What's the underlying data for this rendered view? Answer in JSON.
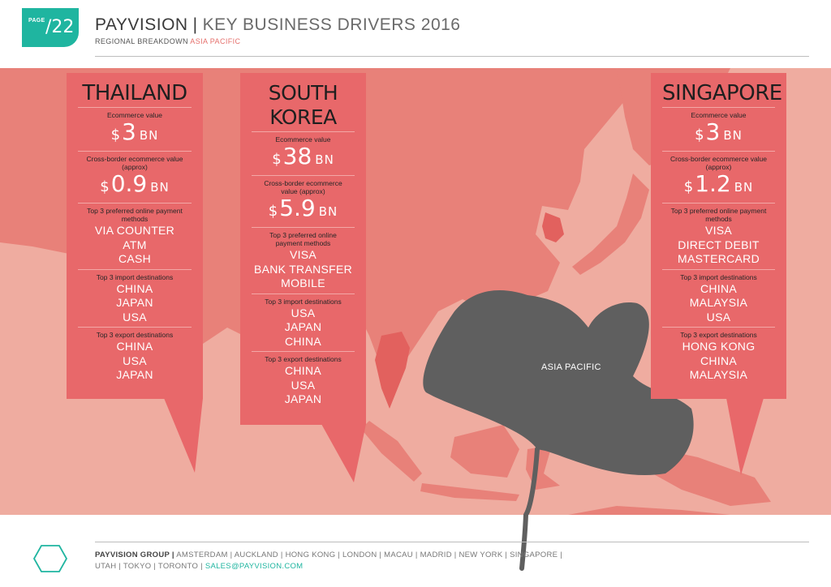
{
  "header": {
    "page_label": "PAGE",
    "page_number": "/22",
    "brand": "PAYVISION",
    "separator": "|",
    "title": "KEY BUSINESS DRIVERS 2016",
    "subtitle_prefix": "REGIONAL BREAKDOWN",
    "subtitle_region": "ASIA PACIFIC"
  },
  "map": {
    "region_label": "ASIA PACIFIC",
    "colors": {
      "sea": "#efaca0",
      "land": "#e88179",
      "highlight": "#e2615e",
      "leaf": "#5f5f5f"
    }
  },
  "labels": {
    "ecommerce_value": "Ecommerce value",
    "cross_border": "Cross-border ecommerce value (approx)",
    "payment_methods": "Top 3 preferred online payment methods",
    "import_destinations": "Top 3 import destinations",
    "export_destinations": "Top 3 export destinations",
    "currency": "$",
    "unit": "BN"
  },
  "countries": [
    {
      "name": "THAILAND",
      "ecommerce_value": "3",
      "cross_border_value": "0.9",
      "payment_methods": [
        "VIA COUNTER",
        "ATM",
        "CASH"
      ],
      "imports": [
        "CHINA",
        "JAPAN",
        "USA"
      ],
      "exports": [
        "CHINA",
        "USA",
        "JAPAN"
      ]
    },
    {
      "name": "SOUTH KOREA",
      "name_line1": "SOUTH",
      "name_line2": "KOREA",
      "ecommerce_value": "38",
      "cross_border_value": "5.9",
      "payment_methods": [
        "VISA",
        "BANK TRANSFER",
        "MOBILE"
      ],
      "imports": [
        "USA",
        "JAPAN",
        "CHINA"
      ],
      "exports": [
        "CHINA",
        "USA",
        "JAPAN"
      ]
    },
    {
      "name": "SINGAPORE",
      "ecommerce_value": "3",
      "cross_border_value": "1.2",
      "payment_methods": [
        "VISA",
        "DIRECT DEBIT",
        "MASTERCARD"
      ],
      "imports": [
        "CHINA",
        "MALAYSIA",
        "USA"
      ],
      "exports": [
        "HONG KONG",
        "CHINA",
        "MALAYSIA"
      ]
    }
  ],
  "footer": {
    "group": "PAYVISION GROUP |",
    "offices": "AMSTERDAM | AUCKLAND | HONG KONG | LONDON | MACAU | MADRID | NEW YORK | SINGAPORE | UTAH | TOKYO | TORONTO |",
    "email": "SALES@PAYVISION.COM"
  }
}
